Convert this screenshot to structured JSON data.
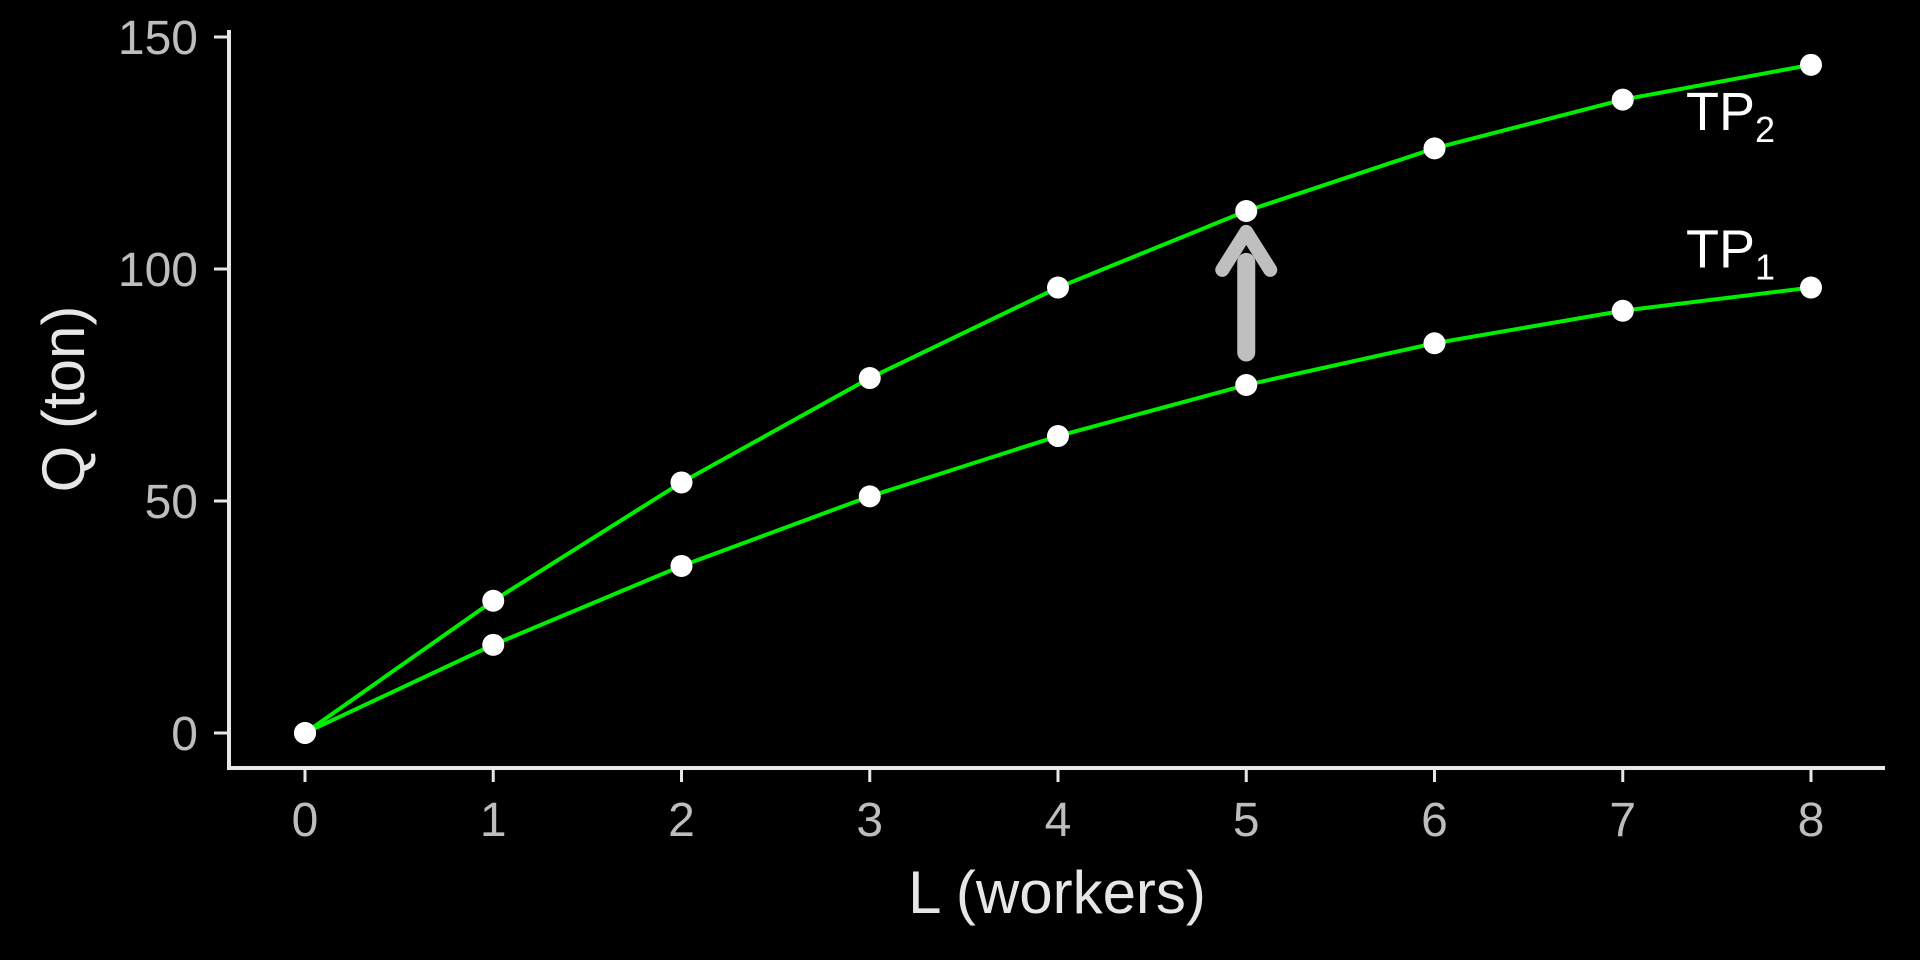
{
  "chart_data": {
    "type": "line",
    "x": [
      0,
      1,
      2,
      3,
      4,
      5,
      6,
      7,
      8
    ],
    "xlabel": "L (workers)",
    "ylabel": "Q (ton)",
    "xlim": [
      0,
      8
    ],
    "ylim": [
      0,
      150
    ],
    "x_ticks": [
      0,
      1,
      2,
      3,
      4,
      5,
      6,
      7,
      8
    ],
    "y_ticks": [
      0,
      50,
      100,
      150
    ],
    "grid": false,
    "background": "#000000",
    "line_color": "#00ee00",
    "marker_color": "#ffffff",
    "arrow_color": "#bfbfbf",
    "series": [
      {
        "label_main": "TP",
        "label_sub": "1",
        "values": [
          0,
          19,
          36,
          51,
          64,
          75,
          84,
          91,
          96
        ]
      },
      {
        "label_main": "TP",
        "label_sub": "2",
        "values": [
          0,
          28.5,
          54,
          76.5,
          96,
          112.5,
          126,
          136.5,
          144
        ]
      }
    ],
    "annotations": [
      {
        "type": "arrow",
        "direction": "up",
        "x": 5,
        "from": 82,
        "to": 108
      }
    ]
  }
}
